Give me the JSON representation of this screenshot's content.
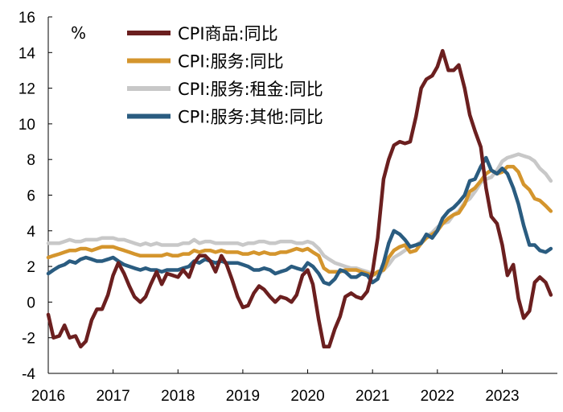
{
  "chart_data": {
    "type": "line",
    "title": "",
    "xlabel": "",
    "ylabel": "%",
    "ylim": [
      -4,
      16
    ],
    "y_ticks": [
      -4,
      -2,
      0,
      2,
      4,
      6,
      8,
      10,
      12,
      14,
      16
    ],
    "x_range": [
      2016,
      2023.85
    ],
    "x_ticks": [
      "2016",
      "2017",
      "2018",
      "2019",
      "2020",
      "2021",
      "2022",
      "2023"
    ],
    "legend_position": "top-center",
    "series": [
      {
        "name": "CPI商品:同比",
        "color": "#6b1f1f",
        "x": [
          2016.0,
          2016.08,
          2016.17,
          2016.25,
          2016.33,
          2016.42,
          2016.5,
          2016.58,
          2016.67,
          2016.75,
          2016.83,
          2016.92,
          2017.0,
          2017.08,
          2017.17,
          2017.25,
          2017.33,
          2017.42,
          2017.5,
          2017.58,
          2017.67,
          2017.75,
          2017.83,
          2017.92,
          2018.0,
          2018.08,
          2018.17,
          2018.25,
          2018.33,
          2018.42,
          2018.5,
          2018.58,
          2018.67,
          2018.75,
          2018.83,
          2018.92,
          2019.0,
          2019.08,
          2019.17,
          2019.25,
          2019.33,
          2019.42,
          2019.5,
          2019.58,
          2019.67,
          2019.75,
          2019.83,
          2019.92,
          2020.0,
          2020.08,
          2020.17,
          2020.25,
          2020.33,
          2020.42,
          2020.5,
          2020.58,
          2020.67,
          2020.75,
          2020.83,
          2020.92,
          2021.0,
          2021.08,
          2021.17,
          2021.25,
          2021.33,
          2021.42,
          2021.5,
          2021.58,
          2021.67,
          2021.75,
          2021.83,
          2021.92,
          2022.0,
          2022.08,
          2022.17,
          2022.25,
          2022.33,
          2022.42,
          2022.5,
          2022.58,
          2022.67,
          2022.75,
          2022.83,
          2022.92,
          2023.0,
          2023.08,
          2023.17,
          2023.25,
          2023.33,
          2023.42,
          2023.5,
          2023.58,
          2023.67,
          2023.75
        ],
        "values": [
          -0.7,
          -2.0,
          -1.9,
          -1.3,
          -2.0,
          -1.9,
          -2.5,
          -2.2,
          -1.0,
          -0.4,
          -0.4,
          0.4,
          1.5,
          2.2,
          1.6,
          0.9,
          0.3,
          0.0,
          0.3,
          1.0,
          1.7,
          1.0,
          1.6,
          1.5,
          1.4,
          1.8,
          1.4,
          2.2,
          2.6,
          2.6,
          2.3,
          1.7,
          2.6,
          2.1,
          1.3,
          0.3,
          -0.3,
          -0.2,
          0.5,
          0.9,
          0.7,
          0.3,
          0.0,
          0.3,
          0.2,
          0.0,
          0.4,
          1.5,
          1.8,
          1.0,
          -1.0,
          -2.5,
          -2.5,
          -1.5,
          -0.8,
          0.3,
          0.5,
          0.3,
          0.2,
          0.6,
          1.7,
          3.6,
          6.9,
          8.0,
          8.8,
          9.0,
          8.9,
          9.0,
          10.4,
          12.0,
          12.5,
          12.7,
          13.2,
          14.1,
          13.0,
          13.0,
          13.3,
          12.0,
          10.5,
          9.6,
          8.7,
          6.4,
          4.8,
          4.4,
          3.2,
          1.5,
          2.1,
          0.2,
          -0.9,
          -0.5,
          1.1,
          1.4,
          1.1,
          0.4
        ]
      },
      {
        "name": "CPI:服务:同比",
        "color": "#d4952d",
        "x": [
          2016.0,
          2016.08,
          2016.17,
          2016.25,
          2016.33,
          2016.42,
          2016.5,
          2016.58,
          2016.67,
          2016.75,
          2016.83,
          2016.92,
          2017.0,
          2017.08,
          2017.17,
          2017.25,
          2017.33,
          2017.42,
          2017.5,
          2017.58,
          2017.67,
          2017.75,
          2017.83,
          2017.92,
          2018.0,
          2018.08,
          2018.17,
          2018.25,
          2018.33,
          2018.42,
          2018.5,
          2018.58,
          2018.67,
          2018.75,
          2018.83,
          2018.92,
          2019.0,
          2019.08,
          2019.17,
          2019.25,
          2019.33,
          2019.42,
          2019.5,
          2019.58,
          2019.67,
          2019.75,
          2019.83,
          2019.92,
          2020.0,
          2020.08,
          2020.17,
          2020.25,
          2020.33,
          2020.42,
          2020.5,
          2020.58,
          2020.67,
          2020.75,
          2020.83,
          2020.92,
          2021.0,
          2021.08,
          2021.17,
          2021.25,
          2021.33,
          2021.42,
          2021.5,
          2021.58,
          2021.67,
          2021.75,
          2021.83,
          2021.92,
          2022.0,
          2022.08,
          2022.17,
          2022.25,
          2022.33,
          2022.42,
          2022.5,
          2022.58,
          2022.67,
          2022.75,
          2022.83,
          2022.92,
          2023.0,
          2023.08,
          2023.17,
          2023.25,
          2023.33,
          2023.42,
          2023.5,
          2023.58,
          2023.67,
          2023.75
        ],
        "values": [
          2.5,
          2.6,
          2.7,
          2.8,
          2.9,
          2.9,
          3.0,
          3.0,
          2.9,
          3.0,
          3.1,
          3.1,
          3.1,
          3.0,
          2.9,
          2.8,
          2.7,
          2.6,
          2.6,
          2.6,
          2.6,
          2.6,
          2.7,
          2.6,
          2.6,
          2.7,
          2.7,
          2.9,
          2.8,
          2.9,
          2.9,
          2.8,
          2.9,
          2.8,
          2.8,
          2.8,
          2.7,
          2.7,
          2.8,
          2.7,
          2.8,
          2.7,
          2.7,
          2.8,
          2.8,
          2.9,
          3.0,
          2.9,
          3.0,
          2.8,
          2.6,
          1.9,
          1.7,
          1.7,
          1.7,
          1.8,
          1.8,
          1.8,
          1.7,
          1.6,
          1.5,
          1.7,
          1.8,
          2.5,
          2.9,
          3.1,
          3.2,
          2.8,
          2.9,
          3.3,
          3.6,
          3.8,
          4.0,
          4.4,
          4.7,
          4.9,
          5.0,
          5.5,
          6.2,
          6.4,
          6.8,
          7.2,
          7.4,
          7.2,
          7.3,
          7.6,
          7.6,
          7.3,
          6.6,
          6.3,
          5.8,
          5.7,
          5.4,
          5.1
        ]
      },
      {
        "name": "CPI:服务:租金:同比",
        "color": "#c8c8c8",
        "x": [
          2016.0,
          2016.08,
          2016.17,
          2016.25,
          2016.33,
          2016.42,
          2016.5,
          2016.58,
          2016.67,
          2016.75,
          2016.83,
          2016.92,
          2017.0,
          2017.08,
          2017.17,
          2017.25,
          2017.33,
          2017.42,
          2017.5,
          2017.58,
          2017.67,
          2017.75,
          2017.83,
          2017.92,
          2018.0,
          2018.08,
          2018.17,
          2018.25,
          2018.33,
          2018.42,
          2018.5,
          2018.58,
          2018.67,
          2018.75,
          2018.83,
          2018.92,
          2019.0,
          2019.08,
          2019.17,
          2019.25,
          2019.33,
          2019.42,
          2019.5,
          2019.58,
          2019.67,
          2019.75,
          2019.83,
          2019.92,
          2020.0,
          2020.08,
          2020.17,
          2020.25,
          2020.33,
          2020.42,
          2020.5,
          2020.58,
          2020.67,
          2020.75,
          2020.83,
          2020.92,
          2021.0,
          2021.08,
          2021.17,
          2021.25,
          2021.33,
          2021.42,
          2021.5,
          2021.58,
          2021.67,
          2021.75,
          2021.83,
          2021.92,
          2022.0,
          2022.08,
          2022.17,
          2022.25,
          2022.33,
          2022.42,
          2022.5,
          2022.58,
          2022.67,
          2022.75,
          2022.83,
          2022.92,
          2023.0,
          2023.08,
          2023.17,
          2023.25,
          2023.33,
          2023.42,
          2023.5,
          2023.58,
          2023.67,
          2023.75
        ],
        "values": [
          3.3,
          3.3,
          3.3,
          3.4,
          3.5,
          3.4,
          3.4,
          3.5,
          3.5,
          3.5,
          3.6,
          3.6,
          3.6,
          3.5,
          3.5,
          3.4,
          3.3,
          3.2,
          3.3,
          3.2,
          3.3,
          3.2,
          3.2,
          3.2,
          3.2,
          3.3,
          3.3,
          3.5,
          3.3,
          3.4,
          3.4,
          3.3,
          3.3,
          3.3,
          3.3,
          3.3,
          3.2,
          3.3,
          3.3,
          3.4,
          3.4,
          3.3,
          3.3,
          3.4,
          3.4,
          3.4,
          3.3,
          3.3,
          3.4,
          3.3,
          3.0,
          2.6,
          2.4,
          2.2,
          2.1,
          2.0,
          1.9,
          1.9,
          1.8,
          1.7,
          1.6,
          1.5,
          1.8,
          2.1,
          2.5,
          2.7,
          2.9,
          3.1,
          3.2,
          3.4,
          3.7,
          3.9,
          4.2,
          4.4,
          4.5,
          4.9,
          5.1,
          5.6,
          5.8,
          6.2,
          6.7,
          6.9,
          7.0,
          7.4,
          7.9,
          8.1,
          8.2,
          8.3,
          8.2,
          8.1,
          7.9,
          7.5,
          7.2,
          6.8
        ]
      },
      {
        "name": "CPI:服务:其他:同比",
        "color": "#2a5c80",
        "x": [
          2016.0,
          2016.08,
          2016.17,
          2016.25,
          2016.33,
          2016.42,
          2016.5,
          2016.58,
          2016.67,
          2016.75,
          2016.83,
          2016.92,
          2017.0,
          2017.08,
          2017.17,
          2017.25,
          2017.33,
          2017.42,
          2017.5,
          2017.58,
          2017.67,
          2017.75,
          2017.83,
          2017.92,
          2018.0,
          2018.08,
          2018.17,
          2018.25,
          2018.33,
          2018.42,
          2018.5,
          2018.58,
          2018.67,
          2018.75,
          2018.83,
          2018.92,
          2019.0,
          2019.08,
          2019.17,
          2019.25,
          2019.33,
          2019.42,
          2019.5,
          2019.58,
          2019.67,
          2019.75,
          2019.83,
          2019.92,
          2020.0,
          2020.08,
          2020.17,
          2020.25,
          2020.33,
          2020.42,
          2020.5,
          2020.58,
          2020.67,
          2020.75,
          2020.83,
          2020.92,
          2021.0,
          2021.08,
          2021.17,
          2021.25,
          2021.33,
          2021.42,
          2021.5,
          2021.58,
          2021.67,
          2021.75,
          2021.83,
          2021.92,
          2022.0,
          2022.08,
          2022.17,
          2022.25,
          2022.33,
          2022.42,
          2022.5,
          2022.58,
          2022.67,
          2022.75,
          2022.83,
          2022.92,
          2023.0,
          2023.08,
          2023.17,
          2023.25,
          2023.33,
          2023.42,
          2023.5,
          2023.58,
          2023.67,
          2023.75
        ],
        "values": [
          1.6,
          1.8,
          2.0,
          2.1,
          2.3,
          2.2,
          2.4,
          2.5,
          2.4,
          2.3,
          2.3,
          2.4,
          2.5,
          2.3,
          2.1,
          2.0,
          1.9,
          1.8,
          1.9,
          1.8,
          1.8,
          1.7,
          1.8,
          1.8,
          1.8,
          1.9,
          2.0,
          2.3,
          2.2,
          2.4,
          2.3,
          2.2,
          2.3,
          2.2,
          2.2,
          2.2,
          2.1,
          2.0,
          1.8,
          1.8,
          1.9,
          1.8,
          1.6,
          1.7,
          1.8,
          2.0,
          1.9,
          1.8,
          2.2,
          2.0,
          1.6,
          1.1,
          1.0,
          1.3,
          1.8,
          1.7,
          1.4,
          1.4,
          1.6,
          1.5,
          1.1,
          1.3,
          2.2,
          3.3,
          4.0,
          3.8,
          3.5,
          3.1,
          3.2,
          3.3,
          3.8,
          3.6,
          4.0,
          4.7,
          5.1,
          5.3,
          5.6,
          6.0,
          6.8,
          6.9,
          7.6,
          8.1,
          7.4,
          7.2,
          7.5,
          7.2,
          6.4,
          5.5,
          4.3,
          3.2,
          3.2,
          2.9,
          2.8,
          3.0
        ]
      }
    ]
  }
}
